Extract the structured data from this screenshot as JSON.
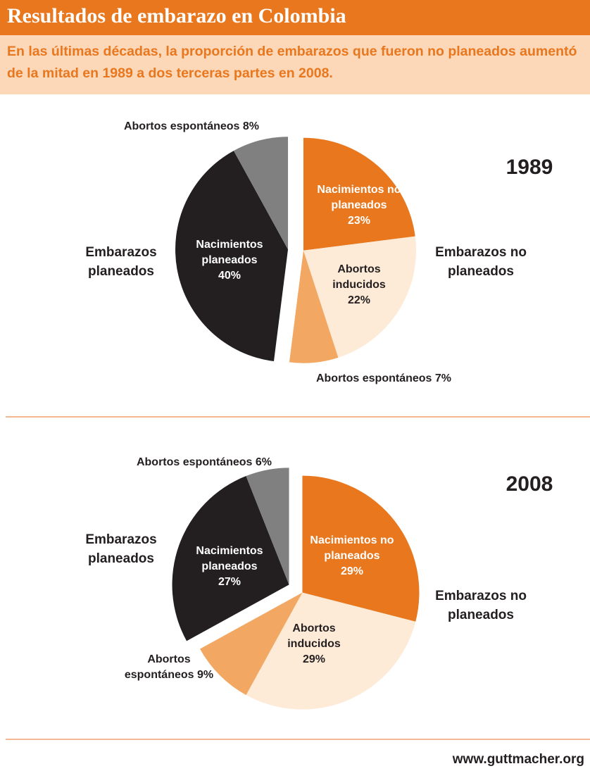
{
  "title": "Resultados de embarazo en Colombia",
  "subtitle": "En las últimas décadas, la proporción de embarazos que fueron no planeados aumentó de la mitad en 1989 a dos terceras partes en 2008.",
  "source": "www.guttmacher.org",
  "chart_data": [
    {
      "type": "pie",
      "title": "1989",
      "series": [
        {
          "name": "Embarazos no planeados",
          "categories": [
            "Nacimientos no planeados",
            "Abortos inducidos",
            "Abortos espontáneos"
          ],
          "values": [
            23,
            22,
            7
          ],
          "value_labels": [
            "23%",
            "22%",
            "7%"
          ],
          "colors": [
            "#e8771e",
            "#fdebd8",
            "#f2a863"
          ]
        },
        {
          "name": "Embarazos planeados",
          "categories": [
            "Nacimientos planeados",
            "Abortos espontáneos"
          ],
          "values": [
            40,
            8
          ],
          "value_labels": [
            "40%",
            "8%"
          ],
          "colors": [
            "#231f20",
            "#808080"
          ]
        }
      ]
    },
    {
      "type": "pie",
      "title": "2008",
      "series": [
        {
          "name": "Embarazos no planeados",
          "categories": [
            "Nacimientos no planeados",
            "Abortos inducidos",
            "Abortos espontáneos"
          ],
          "values": [
            29,
            29,
            9
          ],
          "value_labels": [
            "29%",
            "29%",
            "9%"
          ],
          "colors": [
            "#e8771e",
            "#fdebd8",
            "#f2a863"
          ]
        },
        {
          "name": "Embarazos planeados",
          "categories": [
            "Nacimientos planeados",
            "Abortos espontáneos"
          ],
          "values": [
            27,
            6
          ],
          "value_labels": [
            "27%",
            "6%"
          ],
          "colors": [
            "#231f20",
            "#808080"
          ]
        }
      ]
    }
  ]
}
